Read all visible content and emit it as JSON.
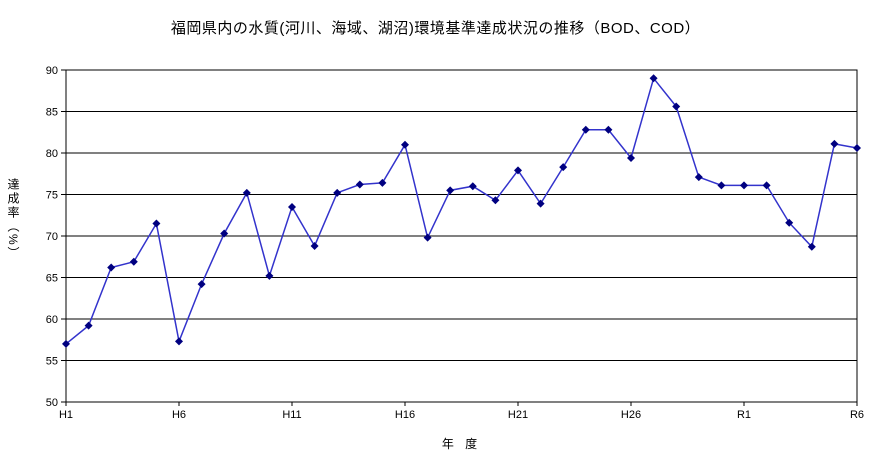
{
  "page": {
    "background_color": "#ffffff"
  },
  "chart_data": {
    "type": "line",
    "title": "福岡県内の水質(河川、海域、湖沼)環境基準達成状況の推移（BOD、COD）",
    "xlabel": "年 度",
    "ylabel": "達成率（%）",
    "categories": [
      "H1",
      "H2",
      "H3",
      "H4",
      "H5",
      "H6",
      "H7",
      "H8",
      "H9",
      "H10",
      "H11",
      "H12",
      "H13",
      "H14",
      "H15",
      "H16",
      "H17",
      "H18",
      "H19",
      "H20",
      "H21",
      "H22",
      "H23",
      "H24",
      "H25",
      "H26",
      "H27",
      "H28",
      "H29",
      "H30",
      "R1",
      "R2",
      "R3",
      "R4",
      "R5",
      "R6"
    ],
    "values": [
      57.0,
      59.2,
      66.2,
      66.9,
      71.5,
      57.3,
      64.2,
      70.3,
      75.2,
      65.2,
      73.5,
      68.8,
      75.2,
      76.2,
      76.4,
      81.0,
      69.8,
      75.5,
      76.0,
      74.3,
      77.9,
      73.9,
      78.3,
      82.8,
      82.8,
      79.4,
      89.0,
      85.6,
      77.1,
      76.1,
      76.1,
      76.1,
      71.6,
      68.7,
      81.1,
      80.6
    ],
    "ylim": [
      50,
      90
    ],
    "ytick_step": 5,
    "ytick_labels": [
      "50",
      "55",
      "60",
      "65",
      "70",
      "75",
      "80",
      "85",
      "90"
    ],
    "xtick_every": 5,
    "visible_xtick_labels": [
      "H1",
      "H6",
      "H11",
      "H16",
      "H21",
      "H26",
      "R1",
      "R6"
    ],
    "grid": "horizontal",
    "legend_position": "none",
    "line_color": "#3333cc",
    "marker_color": "#000080",
    "marker_shape": "diamond",
    "axis_color": "#000000"
  }
}
